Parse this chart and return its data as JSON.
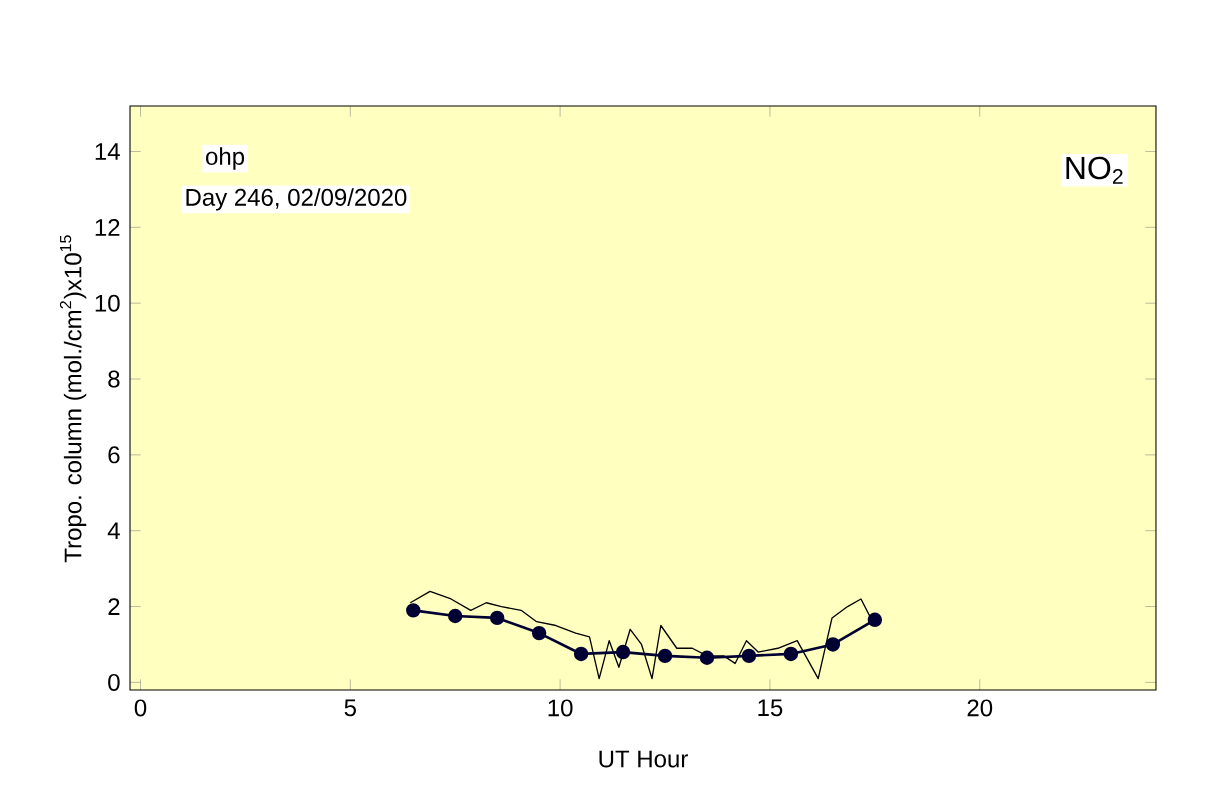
{
  "chart_data": {
    "type": "line",
    "xlabel": "UT Hour",
    "ylabel": "Tropo. column (mol./cm$^{2}$)x10$^{15}$",
    "annotations": [
      "ohp",
      "Day 246, 02/09/2020",
      "NO$_{2}$"
    ],
    "xlim": [
      -0.25,
      24.2
    ],
    "ylim": [
      -0.2,
      15.2
    ],
    "xticks": [
      0,
      5,
      10,
      15,
      20
    ],
    "yticks": [
      0,
      2,
      4,
      6,
      8,
      10,
      12,
      14
    ],
    "grid": false,
    "series": [
      {
        "color": "#000000",
        "marker": "none",
        "x": [
          6.43,
          6.9,
          7.4,
          7.87,
          8.24,
          8.6,
          9.07,
          9.44,
          9.9,
          10.37,
          10.7,
          10.93,
          11.17,
          11.4,
          11.67,
          11.94,
          12.19,
          12.4,
          12.78,
          13.15,
          13.5,
          13.9,
          14.17,
          14.44,
          14.72,
          15.19,
          15.65,
          16.15,
          16.48,
          16.85,
          17.17,
          17.4
        ],
        "values": [
          2.1,
          2.4,
          2.2,
          1.9,
          2.1,
          2.0,
          1.9,
          1.6,
          1.5,
          1.3,
          1.2,
          0.1,
          1.1,
          0.4,
          1.4,
          1.0,
          0.1,
          1.5,
          0.9,
          0.9,
          0.7,
          0.7,
          0.5,
          1.1,
          0.8,
          0.9,
          1.1,
          0.1,
          1.7,
          2.0,
          2.2,
          1.7
        ]
      },
      {
        "color": "#000033",
        "marker": "circle",
        "x": [
          6.5,
          7.5,
          8.5,
          9.5,
          10.5,
          11.5,
          12.5,
          13.5,
          14.5,
          15.5,
          16.5,
          17.5
        ],
        "values": [
          1.9,
          1.75,
          1.7,
          1.3,
          0.75,
          0.8,
          0.7,
          0.65,
          0.7,
          0.75,
          1.0,
          1.65
        ]
      }
    ]
  }
}
